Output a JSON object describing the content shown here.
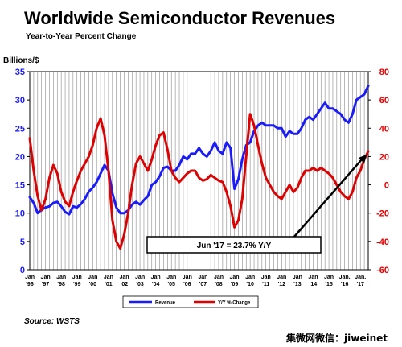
{
  "chart_data": {
    "type": "line",
    "title": "Worldwide Semiconductor Revenues",
    "subtitle": "Year-to-Year Percent Change",
    "ylabel_left": "Billions/$",
    "y_left_lim": [
      0,
      35
    ],
    "y_left_ticks": [
      "0",
      "5",
      "10",
      "15",
      "20",
      "25",
      "30",
      "35"
    ],
    "y_right_lim": [
      -60,
      80
    ],
    "y_right_ticks": [
      "-60",
      "-40",
      "-20",
      "0",
      "20",
      "40",
      "60",
      "80"
    ],
    "x_ticks": [
      {
        "top": "Jan",
        "bottom": "'96"
      },
      {
        "top": "Jan",
        "bottom": "'97"
      },
      {
        "top": "Jan",
        "bottom": "'98"
      },
      {
        "top": "Jan",
        "bottom": "'99"
      },
      {
        "top": "Jan",
        "bottom": "'00"
      },
      {
        "top": "Jan",
        "bottom": "'01"
      },
      {
        "top": "Jan",
        "bottom": "'02"
      },
      {
        "top": "Jan",
        "bottom": "'03"
      },
      {
        "top": "Jan",
        "bottom": "'04"
      },
      {
        "top": "Jan",
        "bottom": "'05"
      },
      {
        "top": "Jan",
        "bottom": "'06"
      },
      {
        "top": "Jan",
        "bottom": "'07"
      },
      {
        "top": "Jan",
        "bottom": "'08"
      },
      {
        "top": "Jan",
        "bottom": "'09"
      },
      {
        "top": "Jan",
        "bottom": "'10"
      },
      {
        "top": "Jan",
        "bottom": "'11"
      },
      {
        "top": "Jan",
        "bottom": "'12"
      },
      {
        "top": "Jan",
        "bottom": "'13"
      },
      {
        "top": "Jan",
        "bottom": "'14"
      },
      {
        "top": "Jan",
        "bottom": "'15"
      },
      {
        "top": "Jan.",
        "bottom": "'16"
      },
      {
        "top": "Jan.",
        "bottom": "'17"
      }
    ],
    "grid": "vertical",
    "legend_position": "bottom-center",
    "annotation": "Jun '17 = 23.7% Y/Y",
    "source": "Source: WSTS",
    "series": [
      {
        "name": "Revenue",
        "axis": "left",
        "color": "#1a1aff",
        "points": [
          [
            1996.0,
            12.8
          ],
          [
            1996.25,
            11.8
          ],
          [
            1996.5,
            10.0
          ],
          [
            1996.75,
            10.6
          ],
          [
            1997.0,
            11.0
          ],
          [
            1997.25,
            11.2
          ],
          [
            1997.5,
            11.8
          ],
          [
            1997.75,
            12.0
          ],
          [
            1998.0,
            11.2
          ],
          [
            1998.25,
            10.2
          ],
          [
            1998.5,
            9.8
          ],
          [
            1998.75,
            11.2
          ],
          [
            1999.0,
            11.0
          ],
          [
            1999.25,
            11.6
          ],
          [
            1999.5,
            12.5
          ],
          [
            1999.75,
            13.8
          ],
          [
            2000.0,
            14.5
          ],
          [
            2000.25,
            15.5
          ],
          [
            2000.5,
            17.0
          ],
          [
            2000.75,
            18.5
          ],
          [
            2001.0,
            17.5
          ],
          [
            2001.25,
            13.5
          ],
          [
            2001.5,
            11.0
          ],
          [
            2001.75,
            10.0
          ],
          [
            2002.0,
            10.0
          ],
          [
            2002.25,
            10.5
          ],
          [
            2002.5,
            11.5
          ],
          [
            2002.75,
            12.0
          ],
          [
            2003.0,
            11.5
          ],
          [
            2003.25,
            12.3
          ],
          [
            2003.5,
            13.0
          ],
          [
            2003.75,
            15.0
          ],
          [
            2004.0,
            15.5
          ],
          [
            2004.25,
            16.5
          ],
          [
            2004.5,
            18.0
          ],
          [
            2004.75,
            18.2
          ],
          [
            2005.0,
            17.5
          ],
          [
            2005.25,
            17.5
          ],
          [
            2005.5,
            18.5
          ],
          [
            2005.75,
            20.0
          ],
          [
            2006.0,
            19.5
          ],
          [
            2006.25,
            20.5
          ],
          [
            2006.5,
            20.5
          ],
          [
            2006.75,
            21.5
          ],
          [
            2007.0,
            20.5
          ],
          [
            2007.25,
            20.0
          ],
          [
            2007.5,
            21.0
          ],
          [
            2007.75,
            22.5
          ],
          [
            2008.0,
            21.0
          ],
          [
            2008.25,
            20.5
          ],
          [
            2008.5,
            22.5
          ],
          [
            2008.75,
            21.5
          ],
          [
            2009.0,
            14.3
          ],
          [
            2009.25,
            16.0
          ],
          [
            2009.5,
            19.5
          ],
          [
            2009.75,
            22.0
          ],
          [
            2010.0,
            22.5
          ],
          [
            2010.25,
            24.5
          ],
          [
            2010.5,
            25.5
          ],
          [
            2010.75,
            26.0
          ],
          [
            2011.0,
            25.5
          ],
          [
            2011.25,
            25.5
          ],
          [
            2011.5,
            25.5
          ],
          [
            2011.75,
            25.0
          ],
          [
            2012.0,
            25.0
          ],
          [
            2012.25,
            23.5
          ],
          [
            2012.5,
            24.5
          ],
          [
            2012.75,
            24.0
          ],
          [
            2013.0,
            24.0
          ],
          [
            2013.25,
            25.0
          ],
          [
            2013.5,
            26.5
          ],
          [
            2013.75,
            27.0
          ],
          [
            2014.0,
            26.5
          ],
          [
            2014.25,
            27.5
          ],
          [
            2014.5,
            28.5
          ],
          [
            2014.75,
            29.5
          ],
          [
            2015.0,
            28.5
          ],
          [
            2015.25,
            28.5
          ],
          [
            2015.5,
            28.0
          ],
          [
            2015.75,
            27.5
          ],
          [
            2016.0,
            26.5
          ],
          [
            2016.25,
            26.0
          ],
          [
            2016.5,
            27.5
          ],
          [
            2016.75,
            30.0
          ],
          [
            2017.0,
            30.5
          ],
          [
            2017.25,
            31.0
          ],
          [
            2017.5,
            32.5
          ]
        ]
      },
      {
        "name": "Y/Y % Change",
        "axis": "right",
        "color": "#e00000",
        "points": [
          [
            1996.0,
            33
          ],
          [
            1996.25,
            10
          ],
          [
            1996.5,
            -8
          ],
          [
            1996.75,
            -18
          ],
          [
            1997.0,
            -10
          ],
          [
            1997.25,
            5
          ],
          [
            1997.5,
            14
          ],
          [
            1997.75,
            8
          ],
          [
            1998.0,
            -5
          ],
          [
            1998.25,
            -12
          ],
          [
            1998.5,
            -15
          ],
          [
            1998.75,
            -5
          ],
          [
            1999.0,
            3
          ],
          [
            1999.25,
            10
          ],
          [
            1999.5,
            15
          ],
          [
            1999.75,
            20
          ],
          [
            2000.0,
            28
          ],
          [
            2000.25,
            40
          ],
          [
            2000.5,
            47
          ],
          [
            2000.75,
            35
          ],
          [
            2001.0,
            10
          ],
          [
            2001.25,
            -25
          ],
          [
            2001.5,
            -40
          ],
          [
            2001.75,
            -45
          ],
          [
            2002.0,
            -35
          ],
          [
            2002.25,
            -20
          ],
          [
            2002.5,
            0
          ],
          [
            2002.75,
            15
          ],
          [
            2003.0,
            20
          ],
          [
            2003.25,
            15
          ],
          [
            2003.5,
            10
          ],
          [
            2003.75,
            18
          ],
          [
            2004.0,
            28
          ],
          [
            2004.25,
            35
          ],
          [
            2004.5,
            37
          ],
          [
            2004.75,
            25
          ],
          [
            2005.0,
            10
          ],
          [
            2005.25,
            5
          ],
          [
            2005.5,
            2
          ],
          [
            2005.75,
            5
          ],
          [
            2006.0,
            8
          ],
          [
            2006.25,
            10
          ],
          [
            2006.5,
            10
          ],
          [
            2006.75,
            5
          ],
          [
            2007.0,
            3
          ],
          [
            2007.25,
            4
          ],
          [
            2007.5,
            7
          ],
          [
            2007.75,
            5
          ],
          [
            2008.0,
            3
          ],
          [
            2008.25,
            2
          ],
          [
            2008.5,
            -5
          ],
          [
            2008.75,
            -15
          ],
          [
            2009.0,
            -30
          ],
          [
            2009.25,
            -25
          ],
          [
            2009.5,
            -10
          ],
          [
            2009.75,
            20
          ],
          [
            2010.0,
            50
          ],
          [
            2010.25,
            42
          ],
          [
            2010.5,
            28
          ],
          [
            2010.75,
            15
          ],
          [
            2011.0,
            5
          ],
          [
            2011.25,
            0
          ],
          [
            2011.5,
            -5
          ],
          [
            2011.75,
            -8
          ],
          [
            2012.0,
            -10
          ],
          [
            2012.25,
            -5
          ],
          [
            2012.5,
            0
          ],
          [
            2012.75,
            -5
          ],
          [
            2013.0,
            -2
          ],
          [
            2013.25,
            5
          ],
          [
            2013.5,
            10
          ],
          [
            2013.75,
            10
          ],
          [
            2014.0,
            12
          ],
          [
            2014.25,
            10
          ],
          [
            2014.5,
            12
          ],
          [
            2014.75,
            10
          ],
          [
            2015.0,
            8
          ],
          [
            2015.25,
            5
          ],
          [
            2015.5,
            0
          ],
          [
            2015.75,
            -5
          ],
          [
            2016.0,
            -8
          ],
          [
            2016.25,
            -10
          ],
          [
            2016.5,
            -5
          ],
          [
            2016.75,
            5
          ],
          [
            2017.0,
            10
          ],
          [
            2017.25,
            18
          ],
          [
            2017.5,
            23.7
          ]
        ]
      }
    ]
  },
  "watermark": "集微网微信：jiweinet",
  "colors": {
    "revenue": "#1a1aff",
    "yoy": "#e00000",
    "grid": "#8a8a8a",
    "annotation_line": "#000000"
  }
}
